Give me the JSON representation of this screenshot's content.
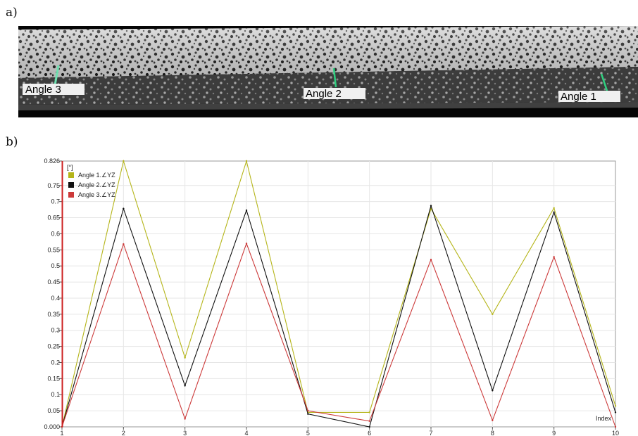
{
  "panels": {
    "a_label": "a)",
    "b_label": "b)"
  },
  "photo": {
    "annotations": [
      {
        "id": "angle3",
        "text": "Angle 3"
      },
      {
        "id": "angle2",
        "text": "Angle 2"
      },
      {
        "id": "angle1",
        "text": "Angle 1"
      }
    ]
  },
  "chart_data": {
    "type": "line",
    "unit_label": "[°]",
    "xlabel": "Index",
    "xlim": [
      1,
      10
    ],
    "ylim": [
      0,
      0.826
    ],
    "x_ticks": [
      "1",
      "2",
      "3",
      "4",
      "5",
      "6",
      "7",
      "8",
      "9",
      "10"
    ],
    "y_ticks": [
      "0.000",
      "0.05",
      "0.1",
      "0.15",
      "0.2",
      "0.25",
      "0.3",
      "0.35",
      "0.4",
      "0.45",
      "0.5",
      "0.55",
      "0.6",
      "0.65",
      "0.7",
      "0.75",
      "0.826"
    ],
    "grid": true,
    "legend_position": "top-left",
    "x": [
      1,
      2,
      3,
      4,
      5,
      6,
      7,
      8,
      9,
      10
    ],
    "series": [
      {
        "name": "Angle 1.∠YZ",
        "color": "#b5b51a",
        "values": [
          0.0,
          0.826,
          0.215,
          0.826,
          0.045,
          0.045,
          0.678,
          0.35,
          0.68,
          0.065
        ]
      },
      {
        "name": "Angle 2.∠YZ",
        "color": "#111111",
        "values": [
          0.0,
          0.678,
          0.128,
          0.673,
          0.04,
          0.0,
          0.687,
          0.113,
          0.667,
          0.045
        ]
      },
      {
        "name": "Angle 3.∠YZ",
        "color": "#cc3a3a",
        "values": [
          0.0,
          0.568,
          0.025,
          0.57,
          0.05,
          0.018,
          0.52,
          0.02,
          0.528,
          0.0
        ]
      }
    ]
  }
}
